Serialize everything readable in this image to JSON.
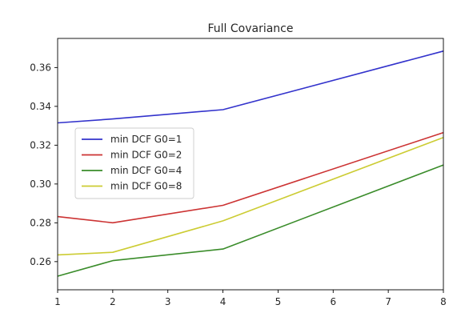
{
  "chart_data": {
    "type": "line",
    "title": "Full Covariance",
    "xlabel": "",
    "ylabel": "",
    "x": [
      1,
      2,
      4,
      8
    ],
    "xlim": [
      1,
      8
    ],
    "ylim": [
      0.2455,
      0.375
    ],
    "xticks": [
      1,
      2,
      3,
      4,
      5,
      6,
      7,
      8
    ],
    "xtick_labels": [
      "1",
      "2",
      "3",
      "4",
      "5",
      "6",
      "7",
      "8"
    ],
    "yticks": [
      0.26,
      0.28,
      0.3,
      0.32,
      0.34,
      0.36
    ],
    "ytick_labels": [
      "0.26",
      "0.28",
      "0.30",
      "0.32",
      "0.34",
      "0.36"
    ],
    "grid": false,
    "legend_position": "center-left",
    "series": [
      {
        "name": "min DCF G0=1",
        "color": "#3333cc",
        "values": [
          0.3315,
          0.3335,
          0.3383,
          0.3685
        ]
      },
      {
        "name": "min DCF G0=2",
        "color": "#cc3333",
        "values": [
          0.2832,
          0.28,
          0.289,
          0.3265
        ]
      },
      {
        "name": "min DCF G0=4",
        "color": "#3a8c2a",
        "values": [
          0.2525,
          0.2605,
          0.2665,
          0.3098
        ]
      },
      {
        "name": "min DCF G0=8",
        "color": "#cccc33",
        "values": [
          0.2635,
          0.2648,
          0.281,
          0.324
        ]
      }
    ]
  }
}
